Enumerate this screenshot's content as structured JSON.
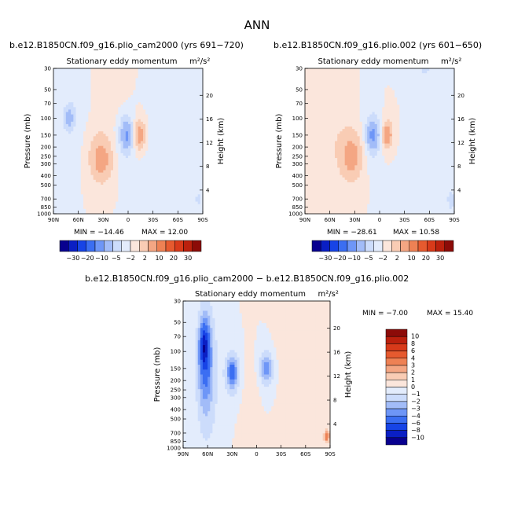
{
  "figure": {
    "title": "ANN",
    "subtitle": "Stationary eddy momentum",
    "units": "m²/s²"
  },
  "colors": {
    "palette": [
      "#08008f",
      "#0a1fc4",
      "#1744e6",
      "#3b6ef2",
      "#6e96f7",
      "#a2bcf8",
      "#ccdcfb",
      "#e3ecfc",
      "#fbe6dc",
      "#f9ccb4",
      "#f4a683",
      "#ee8154",
      "#e65a2f",
      "#d83a1a",
      "#bb200d",
      "#8c0b08"
    ]
  },
  "chart_data": [
    {
      "type": "heatmap",
      "name": "top-left",
      "run_title": "b.e12.B1850CN.f09_g16.plio_cam2000 (yrs 691−720)",
      "title": "Stationary eddy momentum",
      "units": "m²/s²",
      "ylabel": "Pressure (mb)",
      "ylabel_right": "Height (km)",
      "xticks": [
        "90N",
        "60N",
        "30N",
        "0",
        "30S",
        "60S",
        "90S"
      ],
      "yticks": [
        "30",
        "50",
        "70",
        "100",
        "150",
        "200",
        "250",
        "300",
        "400",
        "500",
        "700",
        "850",
        "1000"
      ],
      "yticks_right": [
        "20",
        "16",
        "12",
        "8",
        "4"
      ],
      "min": -14.46,
      "max": 12.0,
      "min_label": "MIN = −14.46",
      "max_label": "MAX = 12.00",
      "colorbar_labels": [
        "−30",
        "−20",
        "−10",
        "−5",
        "−2",
        "2",
        "10",
        "20",
        "30"
      ],
      "features": [
        {
          "lat": 71,
          "p": 100,
          "val": -6,
          "lat_w": 4,
          "lp_w": 0.18
        },
        {
          "lat": 68,
          "p": 85,
          "val": -1.5,
          "lat_w": 11,
          "lp_w": 0.9
        },
        {
          "lat": 32,
          "p": 280,
          "val": 5,
          "lat_w": 8,
          "lp_w": 0.32
        },
        {
          "lat": 34,
          "p": 230,
          "val": 2.5,
          "lat_w": 12,
          "lp_w": 0.5
        },
        {
          "lat": 2,
          "p": 150,
          "val": -9,
          "lat_w": 4.5,
          "lp_w": 0.24
        },
        {
          "lat": 2,
          "p": 150,
          "val": -2.5,
          "lat_w": 9,
          "lp_w": 0.5
        },
        {
          "lat": -14,
          "p": 150,
          "val": 6,
          "lat_w": 4.5,
          "lp_w": 0.22
        },
        {
          "lat": -14,
          "p": 150,
          "val": 2,
          "lat_w": 9,
          "lp_w": 0.45
        },
        {
          "lat": -38,
          "p": 300,
          "val": -1.5,
          "lat_w": 20,
          "lp_w": 1.0
        },
        {
          "lat": 16,
          "p": 40,
          "val": 1.5,
          "lat_w": 12,
          "lp_w": 0.6
        },
        {
          "lat": -58,
          "p": 70,
          "val": -1.2,
          "lat_w": 20,
          "lp_w": 0.8
        },
        {
          "lat": -85,
          "p": 700,
          "val": -3,
          "lat_w": 3,
          "lp_w": 0.15
        }
      ]
    },
    {
      "type": "heatmap",
      "name": "top-right",
      "run_title": "b.e12.B1850CN.f09_g16.plio.002 (yrs 601−650)",
      "title": "Stationary eddy momentum",
      "units": "m²/s²",
      "ylabel": "Pressure (mb)",
      "ylabel_right": "Height (km)",
      "xticks": [
        "90N",
        "60N",
        "30N",
        "0",
        "30S",
        "60S",
        "90S"
      ],
      "yticks": [
        "30",
        "50",
        "70",
        "100",
        "150",
        "200",
        "250",
        "300",
        "400",
        "500",
        "700",
        "850",
        "1000"
      ],
      "yticks_right": [
        "20",
        "16",
        "12",
        "8",
        "4"
      ],
      "min": -28.61,
      "max": 10.58,
      "min_label": "MIN = −28.61",
      "max_label": "MAX = 10.58",
      "colorbar_labels": [
        "−30",
        "−20",
        "−10",
        "−5",
        "−2",
        "2",
        "10",
        "20",
        "30"
      ],
      "features": [
        {
          "lat": 62,
          "p": 90,
          "val": 1.5,
          "lat_w": 12,
          "lp_w": 0.9
        },
        {
          "lat": 34,
          "p": 250,
          "val": 5,
          "lat_w": 8,
          "lp_w": 0.34
        },
        {
          "lat": 36,
          "p": 230,
          "val": 2.5,
          "lat_w": 13,
          "lp_w": 0.55
        },
        {
          "lat": 8,
          "p": 150,
          "val": -10,
          "lat_w": 4.5,
          "lp_w": 0.22
        },
        {
          "lat": 8,
          "p": 150,
          "val": -3,
          "lat_w": 9,
          "lp_w": 0.5
        },
        {
          "lat": -9,
          "p": 150,
          "val": 9,
          "lat_w": 3.5,
          "lp_w": 0.18
        },
        {
          "lat": -12,
          "p": 150,
          "val": 2,
          "lat_w": 10,
          "lp_w": 0.5
        },
        {
          "lat": -38,
          "p": 300,
          "val": -1.5,
          "lat_w": 20,
          "lp_w": 1.0
        },
        {
          "lat": -55,
          "p": 30,
          "val": -3,
          "lat_w": 4,
          "lp_w": 0.15
        },
        {
          "lat": 80,
          "p": 40,
          "val": 1.2,
          "lat_w": 10,
          "lp_w": 0.6
        },
        {
          "lat": -86,
          "p": 720,
          "val": -4,
          "lat_w": 3,
          "lp_w": 0.18
        }
      ]
    },
    {
      "type": "heatmap",
      "name": "bottom-difference",
      "run_title": "b.e12.B1850CN.f09_g16.plio_cam2000 − b.e12.B1850CN.f09_g16.plio.002",
      "title": "Stationary eddy momentum",
      "units": "m²/s²",
      "ylabel": "Pressure (mb)",
      "ylabel_right": "Height (km)",
      "xticks": [
        "90N",
        "60N",
        "30N",
        "0",
        "30S",
        "60S",
        "90S"
      ],
      "yticks": [
        "30",
        "50",
        "70",
        "100",
        "150",
        "200",
        "250",
        "300",
        "400",
        "500",
        "700",
        "850",
        "1000"
      ],
      "yticks_right": [
        "20",
        "16",
        "12",
        "8",
        "4"
      ],
      "min": -7.0,
      "max": 15.4,
      "min_label": "MIN = −7.00",
      "max_label": "MAX = 15.40",
      "colorbar_labels": [
        "10",
        "8",
        "6",
        "4",
        "3",
        "2",
        "1",
        "0",
        "−1",
        "−2",
        "−3",
        "−4",
        "−6",
        "−8",
        "−10"
      ],
      "features": [
        {
          "lat": 64,
          "p": 90,
          "val": -6,
          "lat_w": 3.5,
          "lp_w": 0.32
        },
        {
          "lat": 63,
          "p": 120,
          "val": -3.5,
          "lat_w": 6,
          "lp_w": 0.8
        },
        {
          "lat": 60,
          "p": 200,
          "val": -1.5,
          "lat_w": 11,
          "lp_w": 1.3
        },
        {
          "lat": 30,
          "p": 165,
          "val": -4,
          "lat_w": 4,
          "lp_w": 0.22
        },
        {
          "lat": 28,
          "p": 170,
          "val": -1.5,
          "lat_w": 9,
          "lp_w": 0.5
        },
        {
          "lat": -12,
          "p": 150,
          "val": -3,
          "lat_w": 5,
          "lp_w": 0.2
        },
        {
          "lat": -12,
          "p": 150,
          "val": -1.2,
          "lat_w": 9,
          "lp_w": 0.5
        },
        {
          "lat": 8,
          "p": 300,
          "val": 0.8,
          "lat_w": 9,
          "lp_w": 0.8
        },
        {
          "lat": -40,
          "p": 60,
          "val": 0.8,
          "lat_w": 15,
          "lp_w": 0.7
        },
        {
          "lat": -45,
          "p": 350,
          "val": 0.6,
          "lat_w": 15,
          "lp_w": 0.8
        },
        {
          "lat": -86,
          "p": 760,
          "val": 4,
          "lat_w": 2.5,
          "lp_w": 0.1
        }
      ]
    }
  ]
}
